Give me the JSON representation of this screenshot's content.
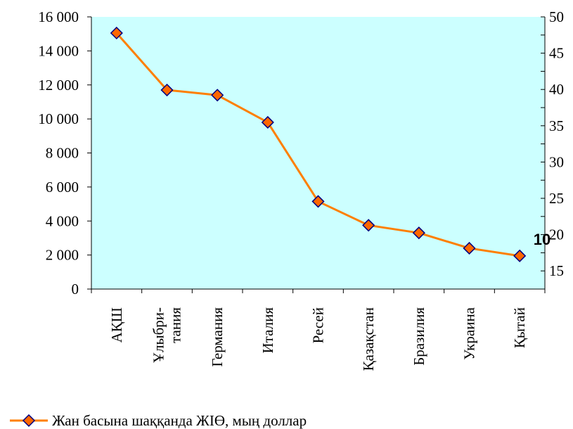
{
  "chart_data": {
    "type": "line",
    "title": "",
    "xlabel": "",
    "ylabel": "",
    "categories": [
      [
        "АҚШ"
      ],
      [
        "Ұлыбри-",
        "тания"
      ],
      [
        "Германия"
      ],
      [
        "Италия"
      ],
      [
        "Ресей"
      ],
      [
        "Қазақстан"
      ],
      [
        "Бразилия"
      ],
      [
        "Украина"
      ],
      [
        "Қытай"
      ]
    ],
    "series": [
      {
        "name": "Жан басына шаққанда ЖІӨ, мың доллар",
        "values": [
          15050,
          11700,
          11400,
          9800,
          5150,
          3750,
          3300,
          2400,
          1950
        ],
        "color": "#FF7F00",
        "marker_fill": "#FF6600",
        "marker_edge": "#000080"
      }
    ],
    "ylim": [
      0,
      16000
    ],
    "yticks": [
      "0",
      "2 000",
      "4 000",
      "6 000",
      "8 000",
      "10 000",
      "12 000",
      "14 000",
      "16 000"
    ],
    "ylim_right": [
      12.5,
      50
    ],
    "yticks_right": [
      "15",
      "20",
      "25",
      "30",
      "35",
      "40",
      "45",
      "50"
    ],
    "plot_background": "#CCFFFF",
    "grid": false,
    "legend": "bottom-left",
    "stray_label": "10"
  }
}
